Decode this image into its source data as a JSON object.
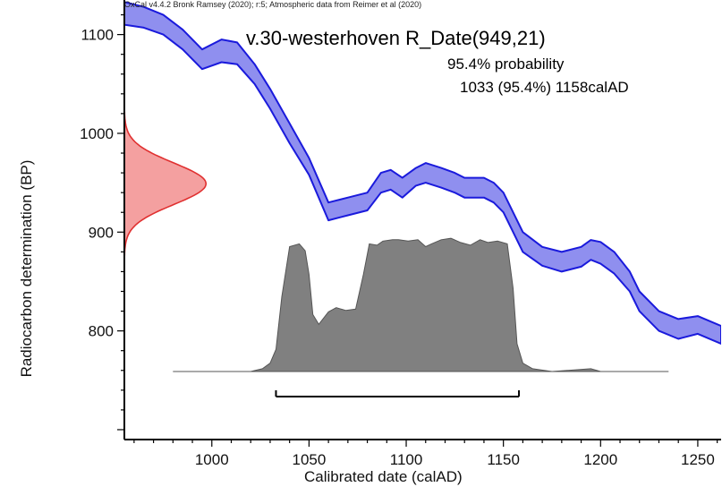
{
  "chart_data": {
    "type": "area",
    "credit": "OxCal v4.4.2 Bronk Ramsey (2020); r:5; Atmospheric data from Reimer et al (2020)",
    "title": "v.30-westerhoven R_Date(949,21)",
    "probability_label": "95.4% probability",
    "range_label": "1033 (95.4%) 1158calAD",
    "xlabel": "Calibrated date (calAD)",
    "ylabel": "Radiocarbon determination (BP)",
    "xlim": [
      955,
      1262
    ],
    "ylim": [
      690,
      1135
    ],
    "xticks": [
      1000,
      1050,
      1100,
      1150,
      1200,
      1250
    ],
    "yticks": [
      800,
      900,
      1000,
      1100
    ],
    "calibration_curve": {
      "color": "#1a1adc",
      "fill": "#8f8fef",
      "x": [
        955,
        965,
        975,
        985,
        995,
        1005,
        1013,
        1022,
        1030,
        1040,
        1050,
        1060,
        1070,
        1080,
        1087,
        1092,
        1098,
        1105,
        1110,
        1118,
        1125,
        1130,
        1140,
        1145,
        1150,
        1160,
        1170,
        1180,
        1190,
        1195,
        1200,
        1207,
        1215,
        1220,
        1230,
        1240,
        1250,
        1262
      ],
      "upper": [
        1133,
        1128,
        1120,
        1105,
        1085,
        1095,
        1092,
        1070,
        1045,
        1010,
        975,
        930,
        935,
        940,
        960,
        963,
        955,
        965,
        970,
        965,
        960,
        955,
        955,
        950,
        940,
        900,
        885,
        880,
        885,
        892,
        890,
        880,
        860,
        840,
        820,
        812,
        815,
        805
      ],
      "lower": [
        1110,
        1107,
        1100,
        1085,
        1065,
        1072,
        1070,
        1050,
        1025,
        990,
        958,
        912,
        917,
        922,
        940,
        943,
        935,
        947,
        950,
        945,
        940,
        935,
        935,
        930,
        920,
        880,
        866,
        860,
        865,
        872,
        868,
        858,
        840,
        820,
        800,
        792,
        797,
        787
      ]
    },
    "measurement": {
      "mean_bp": 949,
      "sigma": 21,
      "color": "#e03030",
      "fill": "#f4a0a0",
      "max_extent_years": 42
    },
    "calibrated_distribution": {
      "color": "#555555",
      "fill": "#808080",
      "x": [
        980,
        1020,
        1026,
        1030,
        1033,
        1036,
        1040,
        1045,
        1048,
        1050,
        1052,
        1055,
        1060,
        1064,
        1069,
        1074,
        1078,
        1081,
        1085,
        1088,
        1093,
        1096,
        1101,
        1106,
        1110,
        1113,
        1118,
        1123,
        1128,
        1133,
        1138,
        1142,
        1147,
        1152,
        1155,
        1157,
        1160,
        1165,
        1175,
        1195,
        1200,
        1235
      ],
      "density": [
        0.0,
        0.0,
        0.02,
        0.06,
        0.16,
        0.54,
        0.9,
        0.92,
        0.87,
        0.7,
        0.41,
        0.34,
        0.43,
        0.46,
        0.44,
        0.45,
        0.7,
        0.92,
        0.91,
        0.94,
        0.95,
        0.95,
        0.94,
        0.95,
        0.9,
        0.92,
        0.95,
        0.96,
        0.93,
        0.91,
        0.95,
        0.93,
        0.94,
        0.92,
        0.6,
        0.2,
        0.06,
        0.02,
        0.0,
        0.02,
        0.0,
        0.0
      ]
    },
    "range_bar": {
      "from": 1033,
      "to": 1158
    }
  }
}
